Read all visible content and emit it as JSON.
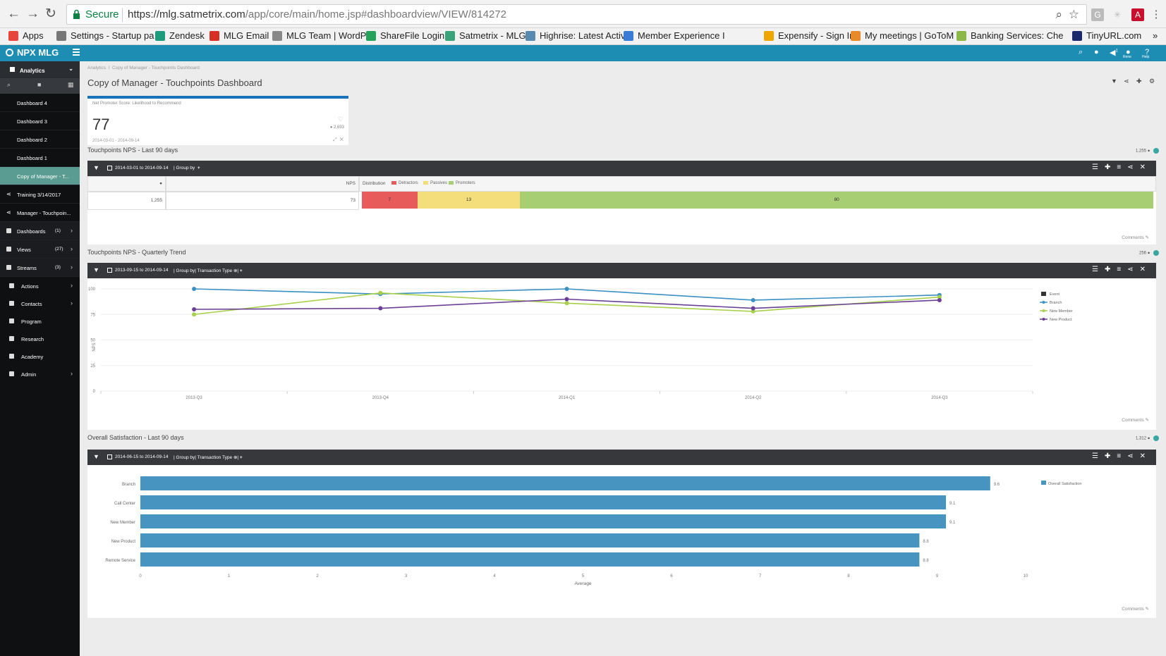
{
  "browser": {
    "secure_label": "Secure",
    "url_host": "https://mlg.satmetrix.com",
    "url_path": "/app/core/main/home.jsp#dashboardview/VIEW/814272",
    "bookmarks": [
      "Apps",
      "Settings - Startup pa",
      "Zendesk",
      "MLG Email",
      "MLG Team | WordPre",
      "ShareFile Login",
      "Satmetrix - MLG",
      "Highrise: Latest Activ",
      "Member Experience I",
      "Expensify - Sign In",
      "My meetings | GoToM",
      "Banking Services: Che",
      "TinyURL.com"
    ],
    "more": "»"
  },
  "app": {
    "logo": "NPX MLG",
    "top_icons": [
      "search-icon",
      "chat-icon",
      "notification-icon",
      "user-icon",
      "help-icon"
    ],
    "top_labels": {
      "user": "Rene",
      "help": "Help"
    },
    "notif_count": "1"
  },
  "sidebar": {
    "head": "Analytics",
    "items": [
      {
        "label": "Dashboard 4",
        "style": "plain"
      },
      {
        "label": "Dashboard 3",
        "style": "plain"
      },
      {
        "label": "Dashboard 2",
        "style": "plain"
      },
      {
        "label": "Dashboard 1",
        "style": "plain"
      },
      {
        "label": "Copy of Manager - T...",
        "style": "active"
      },
      {
        "label": "Training 3/14/2017",
        "style": "share"
      },
      {
        "label": "Manager - Touchpoin...",
        "style": "share"
      }
    ],
    "sections": [
      {
        "label": "Dashboards",
        "count": "(1)"
      },
      {
        "label": "Views",
        "count": "(27)"
      },
      {
        "label": "Streams",
        "count": "(3)"
      }
    ],
    "nav": [
      {
        "label": "Actions",
        "chev": true
      },
      {
        "label": "Contacts",
        "chev": true
      },
      {
        "label": "Program",
        "chev": false
      },
      {
        "label": "Research",
        "chev": false
      },
      {
        "label": "Academy",
        "chev": false
      },
      {
        "label": "Admin",
        "chev": true
      }
    ]
  },
  "page": {
    "breadcrumb": [
      "Analytics",
      "Copy of Manager - Touchpoints Dashboard"
    ],
    "title": "Copy of Manager - Touchpoints Dashboard"
  },
  "kpi": {
    "label": "Net Promoter Score: Likelihood to Recommend",
    "value": "77",
    "count": "2,693",
    "range": "2014-03-01 - 2014-09-14"
  },
  "widgets": {
    "nps": {
      "title": "Touchpoints NPS - Last 90 days",
      "count": "1,255",
      "date": "2014-03-01 to 2014-09-14",
      "groupby": "Group by",
      "cols": {
        "nps": "NPS",
        "dist": "Distribution"
      },
      "legend": [
        "Detractors",
        "Passives",
        "Promoters"
      ],
      "row": {
        "count": "1,255",
        "nps": "73",
        "detractors": "7",
        "passives": "13",
        "promoters": "80"
      },
      "colors": {
        "detractors": "#e85b5b",
        "passives": "#f4dd7b",
        "promoters": "#a8ce74"
      },
      "comments": "Comments"
    },
    "trend": {
      "title": "Touchpoints NPS - Quarterly Trend",
      "count": "256",
      "date": "2013-09-15 to 2014-09-14",
      "groupby": "Group by",
      "groupval": "Transaction Type",
      "comments": "Comments"
    },
    "sat": {
      "title": "Overall Satisfaction - Last 90 days",
      "count": "1,312",
      "date": "2014-06-15 to 2014-09-14",
      "groupby": "Group by",
      "groupval": "Transaction Type",
      "comments": "Comments"
    }
  },
  "chart_data": [
    {
      "type": "line",
      "x": [
        "2013-Q3",
        "2013-Q4",
        "2014-Q1",
        "2014-Q2",
        "2014-Q3"
      ],
      "ylabel": "NPS",
      "ylim": [
        0,
        100
      ],
      "yticks": [
        0,
        25,
        50,
        75,
        100
      ],
      "legend": [
        "Event",
        "Branch",
        "New Member",
        "New Product"
      ],
      "legend_colors": [
        "#333333",
        "#3a8fc4",
        "#a8d04c",
        "#6a3f96"
      ],
      "series": [
        {
          "name": "Branch",
          "color": "#3a8fc4",
          "values": [
            100,
            95,
            100,
            89,
            94
          ]
        },
        {
          "name": "New Member",
          "color": "#a8d04c",
          "values": [
            75,
            96,
            86,
            78,
            92
          ]
        },
        {
          "name": "New Product",
          "color": "#6a3f96",
          "values": [
            80,
            81,
            90,
            81,
            89
          ]
        }
      ]
    },
    {
      "type": "bar",
      "orientation": "horizontal",
      "categories": [
        "Branch",
        "Call Center",
        "New Member",
        "New Product",
        "Remote Service"
      ],
      "values": [
        9.6,
        9.1,
        9.1,
        8.8,
        8.8
      ],
      "xlabel": "Average",
      "xlim": [
        0,
        10
      ],
      "xticks": [
        0,
        1,
        2,
        3,
        4,
        5,
        6,
        7,
        8,
        9,
        10
      ],
      "legend": [
        "Overall Satisfaction"
      ],
      "color": "#4794c1"
    }
  ]
}
